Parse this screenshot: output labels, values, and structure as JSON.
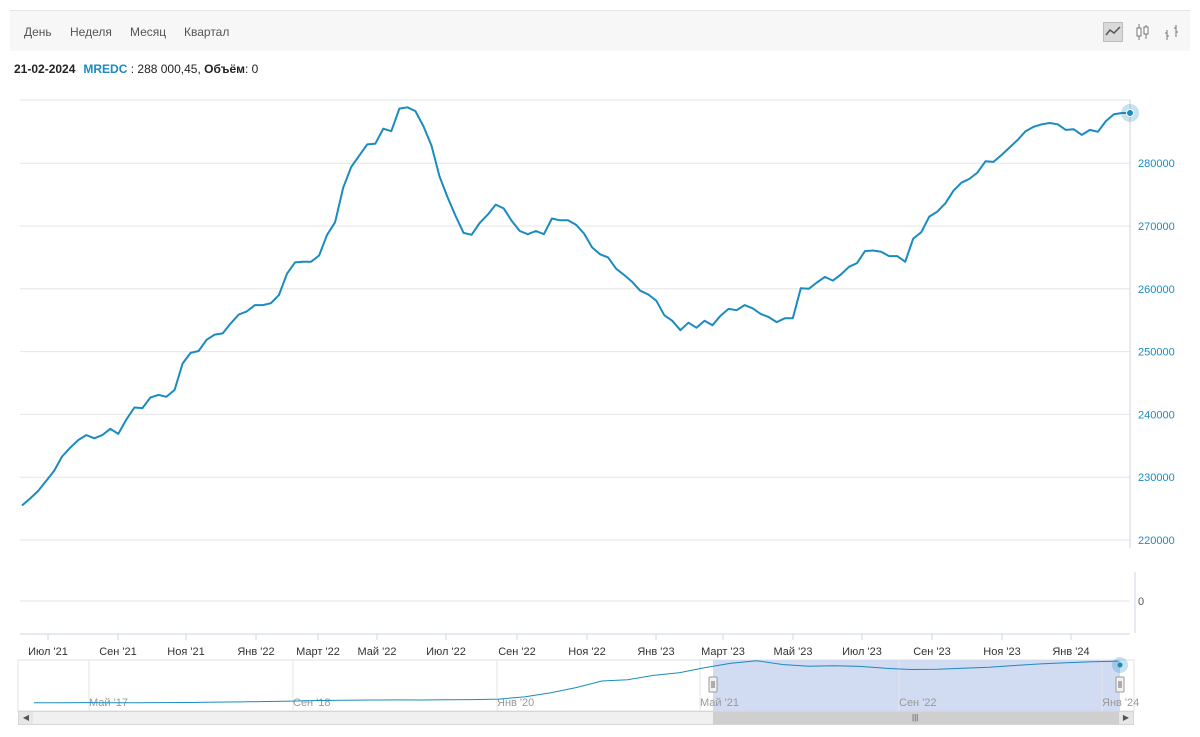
{
  "toolbar": {
    "periods": [
      "День",
      "Неделя",
      "Месяц",
      "Квартал"
    ],
    "icons": [
      "line-chart-icon",
      "candlestick-chart-icon",
      "ohlc-chart-icon"
    ]
  },
  "info": {
    "date": "21-02-2024",
    "ticker": "MREDC",
    "value_text": " : 288 000,45, ",
    "volume_label": "Объём",
    "volume_value": ": 0"
  },
  "colors": {
    "series": "#1a8bbf",
    "grid": "#e6e6e6",
    "axis_text": "#1a8bbf",
    "navigator_fill": "#c9d5ee"
  },
  "chart_data": {
    "type": "line",
    "series": [
      {
        "name": "MREDC",
        "values": [
          225500,
          226600,
          227800,
          229400,
          231000,
          233300,
          234700,
          235900,
          236700,
          236200,
          236700,
          237700,
          236900,
          239200,
          241100,
          241000,
          242700,
          243100,
          242800,
          243900,
          248100,
          249800,
          250100,
          251900,
          252700,
          252900,
          254500,
          255900,
          256400,
          257400,
          257400,
          257700,
          259000,
          262400,
          264200,
          264300,
          264300,
          265300,
          268600,
          270600,
          276100,
          279400,
          281200,
          283000,
          283100,
          285500,
          285100,
          288700,
          288900,
          288300,
          285900,
          282800,
          277900,
          274600,
          271600,
          268900,
          268600,
          270500,
          271800,
          273400,
          272800,
          270800,
          269200,
          268700,
          269200,
          268700,
          271200,
          270900,
          270900,
          270200,
          268800,
          266600,
          265500,
          265000,
          263200,
          262200,
          261100,
          259700,
          259100,
          258100,
          255800,
          254900,
          253400,
          254600,
          253800,
          254900,
          254200,
          255700,
          256800,
          256600,
          257400,
          256900,
          256000,
          255500,
          254700,
          255300,
          255300,
          260100,
          260000,
          261000,
          261900,
          261300,
          262300,
          263500,
          264100,
          266000,
          266100,
          265900,
          265200,
          265200,
          264300,
          268000,
          269000,
          271500,
          272300,
          273600,
          275600,
          276900,
          277500,
          278500,
          280300,
          280200,
          281300,
          282500,
          283700,
          285100,
          285800,
          286200,
          286400,
          286200,
          285300,
          285400,
          284500,
          285300,
          285000,
          286700,
          287800,
          288000,
          288000
        ]
      }
    ],
    "x_ticks": [
      "Июл '21",
      "Сен '21",
      "Ноя '21",
      "Янв '22",
      "Март '22",
      "Май '22",
      "Июл '22",
      "Сен '22",
      "Ноя '22",
      "Янв '23",
      "Март '23",
      "Май '23",
      "Июл '23",
      "Сен '23",
      "Ноя '23",
      "Янв '24"
    ],
    "y_ticks": [
      "280000",
      "270000",
      "260000",
      "250000",
      "240000",
      "230000",
      "220000"
    ],
    "ylim": [
      220000,
      290000
    ],
    "volume_ticks": [
      "0"
    ],
    "navigator_ticks": [
      "Май '17",
      "Сен '18",
      "Янв '20",
      "Май '21",
      "Сен '22",
      "Янв '24"
    ],
    "navigator_values": [
      225000,
      224800,
      225100,
      224900,
      225000,
      225200,
      225400,
      225900,
      226300,
      226800,
      227500,
      228400,
      228900,
      229100,
      229300,
      229100,
      229400,
      229700,
      230500,
      233800,
      240000,
      248000,
      258000,
      260000,
      266500,
      270500,
      278400,
      285000,
      288900,
      283200,
      280500,
      281300,
      280200,
      277300,
      275600,
      276000,
      277500,
      279000,
      281600,
      284000,
      285700,
      287400,
      288000
    ],
    "navigator_selection": [
      "Май '21",
      "Янв '24"
    ],
    "grid": true,
    "y_axis_position": "right"
  }
}
